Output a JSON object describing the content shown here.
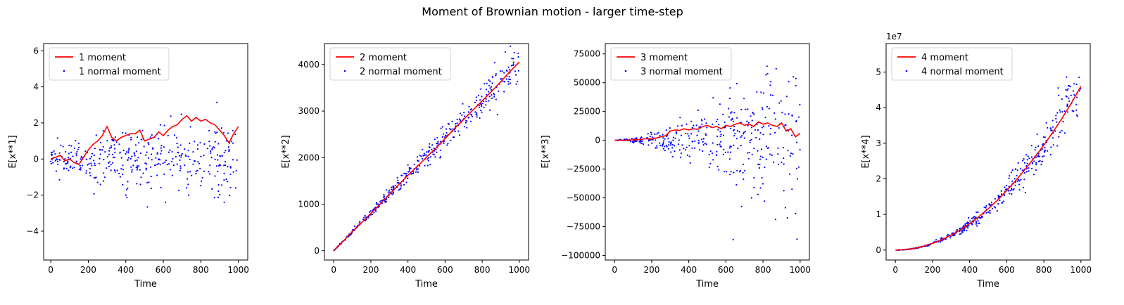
{
  "figure": {
    "title": "Moment of Brownian motion - larger time-step"
  },
  "colors": {
    "moment_line": "#ff0000",
    "normal_points": "#0000ff",
    "axes": "#000000",
    "background": "#ffffff"
  },
  "chart_data": [
    {
      "type": "line",
      "panel": 1,
      "xlabel": "Time",
      "ylabel": "E[x**1]",
      "xlim": [
        -38,
        1050
      ],
      "ylim": [
        -5.6,
        6.4
      ],
      "xticks": [
        0,
        200,
        400,
        600,
        800,
        1000
      ],
      "yticks": [
        -4,
        -2,
        0,
        2,
        4,
        6
      ],
      "ytick_labels": [
        "−4",
        "−2",
        "0",
        "2",
        "4",
        "6"
      ],
      "offset_label": "",
      "legend_position": "upper left",
      "series": [
        {
          "name": "1 moment",
          "kind": "line",
          "x": [
            0,
            25,
            50,
            75,
            100,
            125,
            150,
            175,
            200,
            225,
            250,
            275,
            300,
            325,
            350,
            375,
            400,
            425,
            450,
            475,
            500,
            525,
            550,
            575,
            600,
            625,
            650,
            675,
            700,
            725,
            750,
            775,
            800,
            825,
            850,
            875,
            900,
            925,
            950,
            975,
            1000
          ],
          "y": [
            0.0,
            0.1,
            0.2,
            -0.1,
            0.0,
            -0.2,
            -0.3,
            0.1,
            0.5,
            0.8,
            1.0,
            1.3,
            1.8,
            1.2,
            1.0,
            1.2,
            1.3,
            1.4,
            1.4,
            1.6,
            1.0,
            1.1,
            1.2,
            1.5,
            1.3,
            1.6,
            1.8,
            1.9,
            2.2,
            2.4,
            2.1,
            2.3,
            2.1,
            2.2,
            2.0,
            1.9,
            1.6,
            1.3,
            0.9,
            1.4,
            1.8
          ]
        },
        {
          "name": "1 normal moment",
          "kind": "scatter",
          "std_scale": [
            0.37,
            0.5
          ],
          "mean": 0,
          "count": 400
        }
      ]
    },
    {
      "type": "line",
      "panel": 2,
      "xlabel": "Time",
      "ylabel": "E[x**2]",
      "xlim": [
        -50,
        1050
      ],
      "ylim": [
        -200,
        4450
      ],
      "xticks": [
        0,
        200,
        400,
        600,
        800,
        1000
      ],
      "yticks": [
        0,
        1000,
        2000,
        3000,
        4000
      ],
      "ytick_labels": [
        "0",
        "1000",
        "2000",
        "3000",
        "4000"
      ],
      "offset_label": "",
      "legend_position": "upper left",
      "series": [
        {
          "name": "2 moment",
          "kind": "line",
          "x": [
            0,
            50,
            100,
            150,
            200,
            250,
            300,
            350,
            400,
            450,
            500,
            550,
            600,
            650,
            700,
            750,
            800,
            850,
            900,
            950,
            1000
          ],
          "y": [
            0,
            200,
            410,
            600,
            800,
            1000,
            1210,
            1420,
            1620,
            1810,
            2010,
            2200,
            2410,
            2620,
            2820,
            3020,
            3220,
            3420,
            3630,
            3850,
            4050
          ]
        },
        {
          "name": "2 normal moment",
          "kind": "scatter",
          "mean_slope": 4.05,
          "spread_scale": 220,
          "count": 400
        }
      ]
    },
    {
      "type": "line",
      "panel": 3,
      "xlabel": "Time",
      "ylabel": "E[x**3]",
      "xlim": [
        -50,
        1050
      ],
      "ylim": [
        -104000,
        84000
      ],
      "xticks": [
        0,
        200,
        400,
        600,
        800,
        1000
      ],
      "yticks": [
        -100000,
        -75000,
        -50000,
        -25000,
        0,
        25000,
        50000,
        75000
      ],
      "ytick_labels": [
        "−100000",
        "−75000",
        "−50000",
        "−25000",
        "0",
        "25000",
        "50000",
        "75000"
      ],
      "offset_label": "",
      "legend_position": "upper left",
      "series": [
        {
          "name": "3 moment",
          "kind": "line",
          "x": [
            0,
            25,
            50,
            75,
            100,
            125,
            150,
            175,
            200,
            225,
            250,
            275,
            300,
            325,
            350,
            375,
            400,
            425,
            450,
            475,
            500,
            525,
            550,
            575,
            600,
            625,
            650,
            675,
            700,
            725,
            750,
            775,
            800,
            825,
            850,
            875,
            900,
            925,
            950,
            975,
            1000
          ],
          "y": [
            0,
            0,
            0,
            200,
            500,
            500,
            1000,
            1500,
            1000,
            2000,
            3000,
            4000,
            8000,
            9000,
            8500,
            10000,
            9000,
            10000,
            9500,
            12000,
            13000,
            11000,
            12000,
            10000,
            13000,
            12000,
            14000,
            15000,
            13000,
            14000,
            12000,
            16000,
            14000,
            15000,
            13000,
            12000,
            15000,
            8000,
            10000,
            3000,
            6000
          ]
        },
        {
          "name": "3 normal moment",
          "kind": "scatter",
          "spread_scale": 38000,
          "count": 400
        }
      ]
    },
    {
      "type": "line",
      "panel": 4,
      "xlabel": "Time",
      "ylabel": "E[x**4]",
      "xlim": [
        -50,
        1050
      ],
      "ylim": [
        -2800000,
        58000000
      ],
      "xticks": [
        0,
        200,
        400,
        600,
        800,
        1000
      ],
      "yticks": [
        0,
        10000000,
        20000000,
        30000000,
        40000000,
        50000000
      ],
      "ytick_labels": [
        "0",
        "1",
        "2",
        "3",
        "4",
        "5"
      ],
      "offset_label": "1e7",
      "legend_position": "upper left",
      "series": [
        {
          "name": "4 moment",
          "kind": "line",
          "x": [
            0,
            50,
            100,
            150,
            200,
            250,
            300,
            350,
            400,
            450,
            500,
            550,
            600,
            650,
            700,
            750,
            800,
            850,
            900,
            950,
            1000
          ],
          "y": [
            0,
            120000,
            470000,
            1050000,
            1850000,
            2900000,
            4200000,
            5700000,
            7400000,
            9400000,
            11600000,
            14000000,
            16700000,
            19600000,
            22700000,
            26000000,
            29500000,
            33200000,
            37200000,
            41400000,
            46000000
          ]
        },
        {
          "name": "4 normal moment",
          "kind": "scatter",
          "mean_coefficient": 46,
          "spread_scale": 4200000,
          "count": 400
        }
      ]
    }
  ]
}
